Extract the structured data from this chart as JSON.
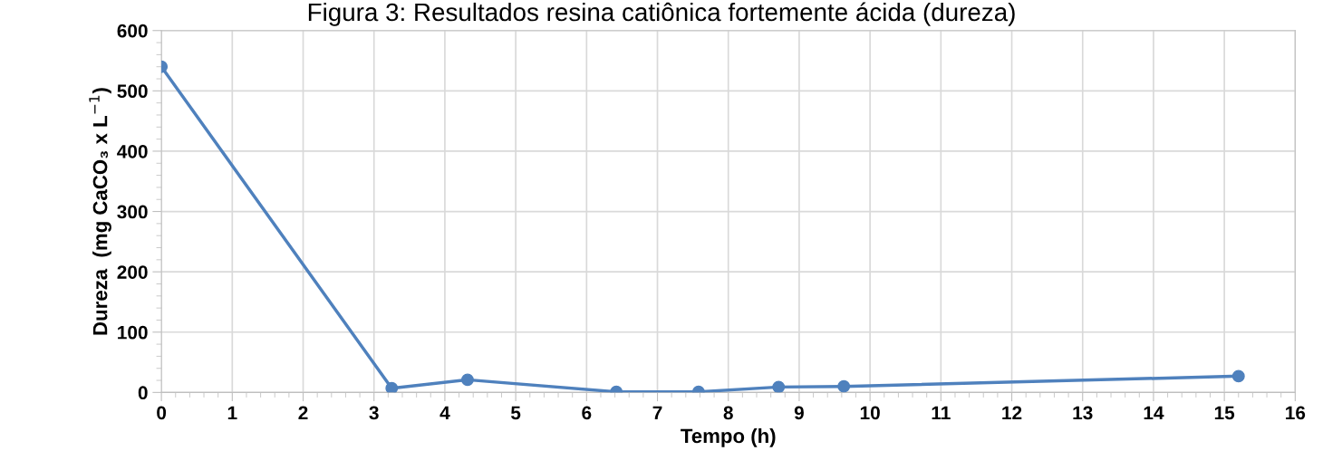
{
  "chart_data": {
    "type": "line",
    "title": "Figura 3: Resultados resina catiônica fortemente ácida (dureza)",
    "xlabel": "Tempo (h)",
    "ylabel": "Dureza  (mg CaCO₃ x L$^{−1}$)",
    "x": [
      0,
      3.25,
      4.32,
      6.42,
      7.58,
      8.71,
      9.63,
      15.2
    ],
    "series": [
      {
        "color": "#4f81bd",
        "values": [
          540,
          7,
          21,
          1,
          1,
          9,
          10,
          27
        ]
      }
    ],
    "xlim": [
      0,
      16
    ],
    "xticks": [
      0,
      1,
      2,
      3,
      4,
      5,
      6,
      7,
      8,
      9,
      10,
      11,
      12,
      13,
      14,
      15,
      16
    ],
    "ylim": [
      0,
      600
    ],
    "yticks": [
      0,
      100,
      200,
      300,
      400,
      500,
      600
    ],
    "grid": true,
    "marker": "circle",
    "line_style": "solid",
    "legend": false
  }
}
